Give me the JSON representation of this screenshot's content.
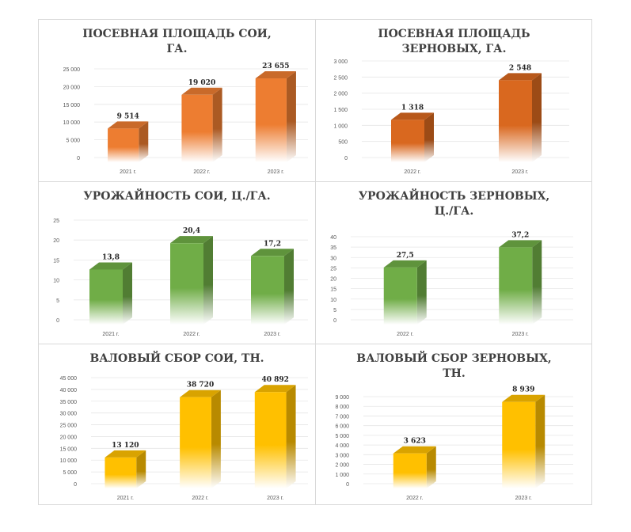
{
  "chart_data": [
    {
      "type": "bar",
      "title": "ПОСЕВНАЯ ПЛОЩАДЬ СОИ, ГА.",
      "title_lines": [
        "ПОСЕВНАЯ ПЛОЩАДЬ СОИ,",
        "ГА."
      ],
      "categories": [
        "2021 г.",
        "2022 г.",
        "2023 г."
      ],
      "values": [
        9514,
        19020,
        23655
      ],
      "value_labels": [
        "9 514",
        "19 020",
        "23 655"
      ],
      "yticks": [
        0,
        5000,
        10000,
        15000,
        20000,
        25000
      ],
      "ytick_labels": [
        "0",
        "5 000",
        "10 000",
        "15 000",
        "20 000",
        "25 000"
      ],
      "ylim": [
        0,
        25000
      ],
      "color": "#ED7D31",
      "xlabel": "",
      "ylabel": ""
    },
    {
      "type": "bar",
      "title": "ПОСЕВНАЯ ПЛОЩАДЬ ЗЕРНОВЫХ, ГА.",
      "title_lines": [
        "ПОСЕВНАЯ ПЛОЩАДЬ",
        "ЗЕРНОВЫХ, ГА."
      ],
      "categories": [
        "2022 г.",
        "2023 г."
      ],
      "values": [
        1318,
        2548
      ],
      "value_labels": [
        "1 318",
        "2 548"
      ],
      "yticks": [
        0,
        500,
        1000,
        1500,
        2000,
        2500,
        3000
      ],
      "ytick_labels": [
        "0",
        "500",
        "1 000",
        "1 500",
        "2 000",
        "2 500",
        "3 000"
      ],
      "ylim": [
        0,
        3000
      ],
      "color": "#D9681F",
      "xlabel": "",
      "ylabel": ""
    },
    {
      "type": "bar",
      "title": "УРОЖАЙНОСТЬ СОИ, Ц./ГА.",
      "title_lines": [
        "УРОЖАЙНОСТЬ СОИ, Ц./ГА."
      ],
      "categories": [
        "2021 г.",
        "2022 г.",
        "2023 г."
      ],
      "values": [
        13.8,
        20.4,
        17.2
      ],
      "value_labels": [
        "13,8",
        "20,4",
        "17,2"
      ],
      "yticks": [
        0,
        5,
        10,
        15,
        20,
        25
      ],
      "ytick_labels": [
        "0",
        "5",
        "10",
        "15",
        "20",
        "25"
      ],
      "ylim": [
        0,
        25
      ],
      "color": "#70AD47",
      "xlabel": "",
      "ylabel": ""
    },
    {
      "type": "bar",
      "title": "УРОЖАЙНОСТЬ ЗЕРНОВЫХ, Ц./ГА.",
      "title_lines": [
        "УРОЖАЙНОСТЬ ЗЕРНОВЫХ,",
        "Ц./ГА."
      ],
      "categories": [
        "2022 г.",
        "2023 г."
      ],
      "values": [
        27.5,
        37.2
      ],
      "value_labels": [
        "27,5",
        "37,2"
      ],
      "yticks": [
        0,
        5,
        10,
        15,
        20,
        25,
        30,
        35,
        40
      ],
      "ytick_labels": [
        "0",
        "5",
        "10",
        "15",
        "20",
        "25",
        "30",
        "35",
        "40"
      ],
      "ylim": [
        0,
        40
      ],
      "color": "#70AD47",
      "xlabel": "",
      "ylabel": ""
    },
    {
      "type": "bar",
      "title": "ВАЛОВЫЙ СБОР СОИ, ТН.",
      "title_lines": [
        "ВАЛОВЫЙ СБОР СОИ, ТН."
      ],
      "categories": [
        "2021 г.",
        "2022 г.",
        "2023 г."
      ],
      "values": [
        13120,
        38720,
        40892
      ],
      "value_labels": [
        "13 120",
        "38 720",
        "40 892"
      ],
      "yticks": [
        0,
        5000,
        10000,
        15000,
        20000,
        25000,
        30000,
        35000,
        40000,
        45000
      ],
      "ytick_labels": [
        "0",
        "5 000",
        "10 000",
        "15 000",
        "20 000",
        "25 000",
        "30 000",
        "35 000",
        "40 000",
        "45 000"
      ],
      "ylim": [
        0,
        45000
      ],
      "color": "#FFC000",
      "xlabel": "",
      "ylabel": ""
    },
    {
      "type": "bar",
      "title": "ВАЛОВЫЙ СБОР ЗЕРНОВЫХ, ТН.",
      "title_lines": [
        "ВАЛОВЫЙ СБОР ЗЕРНОВЫХ,",
        "ТН."
      ],
      "categories": [
        "2022 г.",
        "2023 г."
      ],
      "values": [
        3623,
        8939
      ],
      "value_labels": [
        "3 623",
        "8 939"
      ],
      "yticks": [
        0,
        1000,
        2000,
        3000,
        4000,
        5000,
        6000,
        7000,
        8000,
        9000
      ],
      "ytick_labels": [
        "0",
        "1 000",
        "2 000",
        "3 000",
        "4 000",
        "5 000",
        "6 000",
        "7 000",
        "8 000",
        "9 000"
      ],
      "ylim": [
        0,
        9000
      ],
      "color": "#FFC000",
      "xlabel": "",
      "ylabel": ""
    }
  ]
}
